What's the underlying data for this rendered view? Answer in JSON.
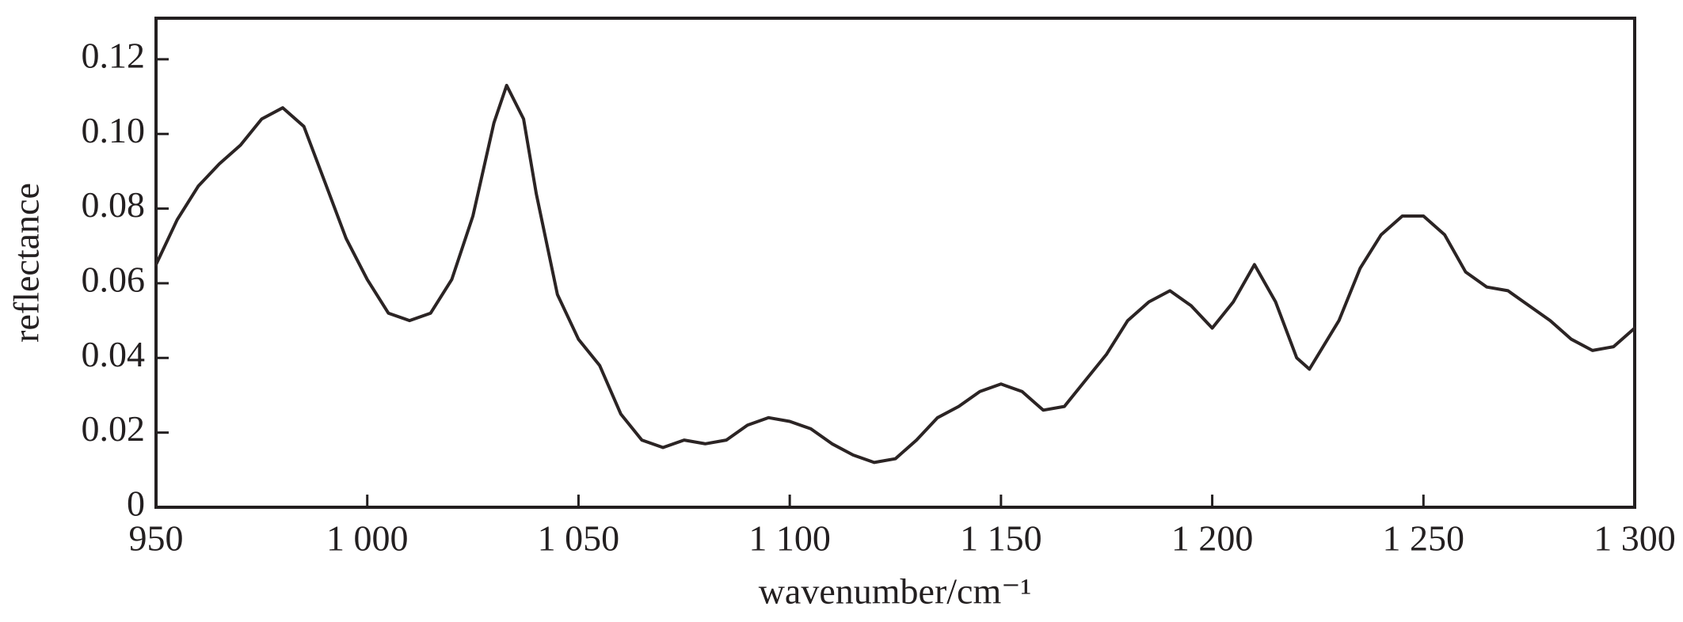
{
  "chart_data": {
    "type": "line",
    "x_label": "wavenumber/cm⁻¹",
    "y_label": "reflectance",
    "xlim": [
      950,
      1300
    ],
    "ylim": [
      0,
      0.131
    ],
    "xticks": [
      950,
      {
        "value": 1000,
        "label": "1 000"
      },
      {
        "value": 1050,
        "label": "1 050"
      },
      {
        "value": 1100,
        "label": "1 100"
      },
      {
        "value": 1150,
        "label": "1 150"
      },
      {
        "value": 1200,
        "label": "1 200"
      },
      {
        "value": 1250,
        "label": "1 250"
      },
      {
        "value": 1300,
        "label": "1 300"
      }
    ],
    "yticks": [
      0,
      0.02,
      0.04,
      0.06,
      0.08,
      {
        "value": 0.1,
        "label": "0.10"
      },
      0.12
    ],
    "x": [
      950,
      955,
      960,
      965,
      970,
      975,
      980,
      985,
      990,
      995,
      1000,
      1005,
      1010,
      1015,
      1020,
      1025,
      1030,
      1033,
      1037,
      1040,
      1045,
      1050,
      1055,
      1060,
      1065,
      1070,
      1075,
      1080,
      1085,
      1090,
      1095,
      1100,
      1105,
      1110,
      1115,
      1120,
      1125,
      1130,
      1135,
      1140,
      1145,
      1150,
      1155,
      1160,
      1165,
      1170,
      1175,
      1180,
      1185,
      1190,
      1195,
      1200,
      1205,
      1210,
      1215,
      1220,
      1223,
      1230,
      1235,
      1240,
      1245,
      1250,
      1255,
      1260,
      1265,
      1270,
      1275,
      1280,
      1285,
      1290,
      1295,
      1300
    ],
    "series": [
      {
        "color": "#2b2424",
        "values": [
          0.065,
          0.077,
          0.086,
          0.092,
          0.097,
          0.104,
          0.107,
          0.102,
          0.087,
          0.072,
          0.061,
          0.052,
          0.05,
          0.052,
          0.061,
          0.078,
          0.103,
          0.113,
          0.104,
          0.084,
          0.057,
          0.045,
          0.038,
          0.025,
          0.018,
          0.016,
          0.018,
          0.017,
          0.018,
          0.022,
          0.024,
          0.023,
          0.021,
          0.017,
          0.014,
          0.012,
          0.013,
          0.018,
          0.024,
          0.027,
          0.031,
          0.033,
          0.031,
          0.026,
          0.027,
          0.034,
          0.041,
          0.05,
          0.055,
          0.058,
          0.054,
          0.048,
          0.055,
          0.065,
          0.055,
          0.04,
          0.037,
          0.05,
          0.064,
          0.073,
          0.078,
          0.078,
          0.073,
          0.063,
          0.059,
          0.058,
          0.054,
          0.05,
          0.045,
          0.042,
          0.043,
          0.048
        ]
      }
    ]
  }
}
